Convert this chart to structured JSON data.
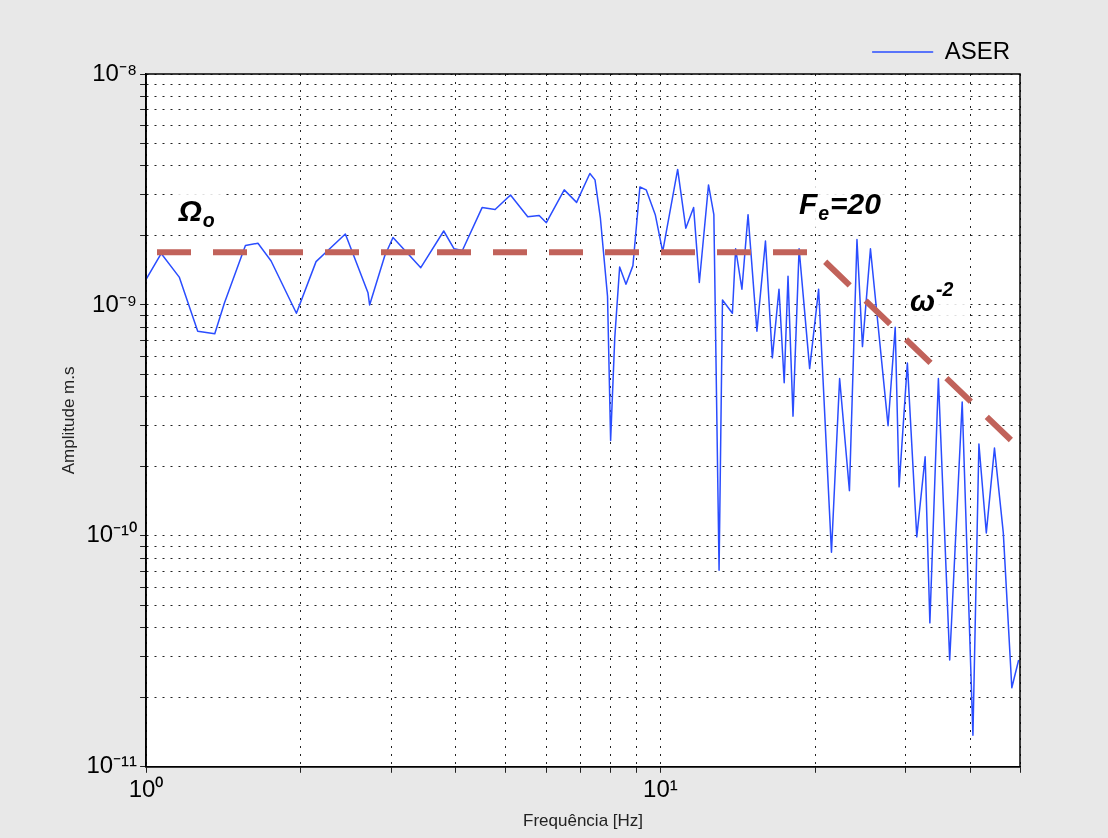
{
  "chart_data": {
    "type": "line",
    "xlabel": "Frequência [Hz]",
    "ylabel": "Amplitude m.s",
    "log": "xy",
    "grid": true,
    "legend": "top right",
    "xlim": [
      1,
      50
    ],
    "ylim": [
      1e-11,
      1e-08
    ],
    "xticks": [
      {
        "value": 1,
        "label": "10⁰"
      },
      {
        "value": 2,
        "label": null
      },
      {
        "value": 3,
        "label": null
      },
      {
        "value": 4,
        "label": null
      },
      {
        "value": 5,
        "label": null
      },
      {
        "value": 6,
        "label": null
      },
      {
        "value": 7,
        "label": null
      },
      {
        "value": 8,
        "label": null
      },
      {
        "value": 9,
        "label": null
      },
      {
        "value": 10,
        "label": "10¹"
      },
      {
        "value": 20,
        "label": null
      },
      {
        "value": 30,
        "label": null
      },
      {
        "value": 40,
        "label": null
      },
      {
        "value": 50,
        "label": null
      }
    ],
    "yticks": [
      {
        "value": 1e-11,
        "label": "10⁻¹¹"
      },
      {
        "value": 2e-11,
        "label": null
      },
      {
        "value": 3e-11,
        "label": null
      },
      {
        "value": 4e-11,
        "label": null
      },
      {
        "value": 5e-11,
        "label": null
      },
      {
        "value": 6e-11,
        "label": null
      },
      {
        "value": 7e-11,
        "label": null
      },
      {
        "value": 8e-11,
        "label": null
      },
      {
        "value": 9e-11,
        "label": null
      },
      {
        "value": 1e-10,
        "label": "10⁻¹⁰"
      },
      {
        "value": 2e-10,
        "label": null
      },
      {
        "value": 3e-10,
        "label": null
      },
      {
        "value": 4e-10,
        "label": null
      },
      {
        "value": 5e-10,
        "label": null
      },
      {
        "value": 6e-10,
        "label": null
      },
      {
        "value": 7e-10,
        "label": null
      },
      {
        "value": 8e-10,
        "label": null
      },
      {
        "value": 9e-10,
        "label": null
      },
      {
        "value": 1e-09,
        "label": "10⁻⁹"
      },
      {
        "value": 2e-09,
        "label": null
      },
      {
        "value": 3e-09,
        "label": null
      },
      {
        "value": 4e-09,
        "label": null
      },
      {
        "value": 5e-09,
        "label": null
      },
      {
        "value": 6e-09,
        "label": null
      },
      {
        "value": 7e-09,
        "label": null
      },
      {
        "value": 8e-09,
        "label": null
      },
      {
        "value": 9e-09,
        "label": null
      },
      {
        "value": 1e-08,
        "label": "10⁻⁸"
      }
    ],
    "series": [
      {
        "name": "ASER",
        "color": "#2a4dff",
        "x": [
          1,
          1.07,
          1.16,
          1.26,
          1.36,
          1.42,
          1.56,
          1.65,
          1.75,
          1.96,
          2.14,
          2.44,
          2.7,
          2.72,
          2.91,
          3.02,
          3.42,
          3.79,
          3.97,
          4.12,
          4.5,
          4.77,
          5.11,
          5.52,
          5.81,
          6.0,
          6.5,
          6.87,
          7.29,
          7.46,
          7.64,
          7.89,
          8.0,
          8.15,
          8.33,
          8.57,
          8.84,
          9.12,
          9.38,
          9.77,
          10.1,
          10.8,
          11.2,
          11.6,
          11.9,
          12.4,
          12.7,
          13.0,
          13.2,
          13.8,
          14.0,
          14.4,
          14.8,
          15.4,
          16.0,
          16.5,
          17.0,
          17.4,
          17.7,
          18.1,
          18.6,
          19.5,
          20.3,
          21.5,
          22.3,
          23.3,
          24.1,
          24.7,
          25.6,
          27.7,
          28.6,
          29.1,
          30.2,
          31.5,
          32.7,
          33.4,
          34.7,
          36.5,
          38.6,
          40.5,
          41.6,
          43.0,
          44.6,
          46.4,
          48.2,
          49.7
        ],
        "values": [
          1.29e-09,
          1.67e-09,
          1.32e-09,
          7.7e-10,
          7.5e-10,
          1.02e-09,
          1.81e-09,
          1.85e-09,
          1.55e-09,
          9.2e-10,
          1.54e-09,
          2.03e-09,
          1.13e-09,
          1e-09,
          1.63e-09,
          1.96e-09,
          1.45e-09,
          2.09e-09,
          1.75e-09,
          1.72e-09,
          2.64e-09,
          2.59e-09,
          2.99e-09,
          2.41e-09,
          2.44e-09,
          2.27e-09,
          3.15e-09,
          2.78e-09,
          3.71e-09,
          3.48e-09,
          2.39e-09,
          1.09e-09,
          2.59e-10,
          7.2e-10,
          1.46e-09,
          1.23e-09,
          1.48e-09,
          3.24e-09,
          3.15e-09,
          2.46e-09,
          1.7e-09,
          3.86e-09,
          2.15e-09,
          2.64e-09,
          1.25e-09,
          3.31e-09,
          2.46e-09,
          7.1e-11,
          1.05e-09,
          9.2e-10,
          1.75e-09,
          1.17e-09,
          2.46e-09,
          7.7e-10,
          1.89e-09,
          5.9e-10,
          1.17e-09,
          4.6e-10,
          1.33e-09,
          3.3e-10,
          1.75e-09,
          5.3e-10,
          1.17e-09,
          8.5e-11,
          4.8e-10,
          1.57e-10,
          1.92e-09,
          6.6e-10,
          1.75e-09,
          3e-10,
          8e-10,
          1.63e-10,
          5.6e-10,
          9.9e-11,
          2.2e-10,
          4.2e-11,
          4.8e-10,
          2.9e-11,
          3.8e-10,
          1.37e-11,
          2.5e-10,
          1.03e-10,
          2.4e-10,
          1.03e-10,
          2.2e-11,
          2.9e-11
        ]
      },
      {
        "type": "line",
        "color": "#c1625a",
        "line_style": "dashed",
        "x": [
          1.05,
          20,
          48
        ],
        "values": [
          1.69e-09,
          1.69e-09,
          2.6e-10
        ]
      }
    ],
    "annotations": [
      "Ω$_{o}$",
      "F$_{e}$=20",
      "ω$^{-2}$"
    ]
  }
}
